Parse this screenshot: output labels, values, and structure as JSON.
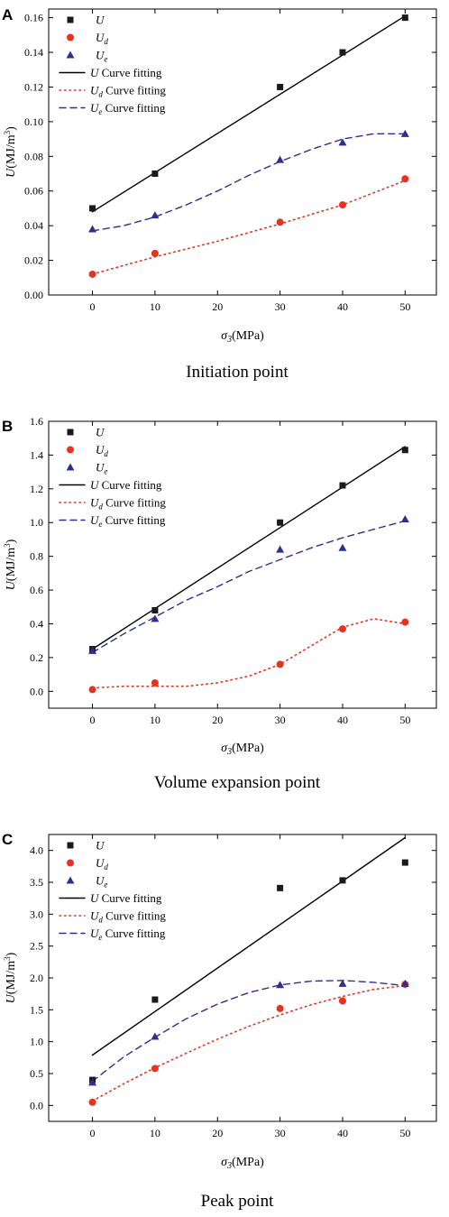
{
  "chart_data": [
    {
      "panel": "A",
      "caption": "Initiation point",
      "type": "scatter",
      "xlabel": "σ3(MPa)",
      "ylabel": "U(MJ/m3)",
      "xlim": [
        -7,
        55
      ],
      "ylim": [
        0,
        0.165
      ],
      "xticks": [
        0,
        10,
        20,
        30,
        40,
        50
      ],
      "yticks": [
        0.0,
        0.02,
        0.04,
        0.06,
        0.08,
        0.1,
        0.12,
        0.14,
        0.16
      ],
      "ytick_decimals": 2,
      "legend_position": "top-left",
      "series": [
        {
          "name": "U",
          "marker": "square",
          "color": "#1a1a1a",
          "x": [
            0,
            10,
            30,
            40,
            50
          ],
          "y": [
            0.05,
            0.07,
            0.12,
            0.14,
            0.16
          ]
        },
        {
          "name": "Ud",
          "marker": "circle",
          "color": "#e8311e",
          "x": [
            0,
            10,
            30,
            40,
            50
          ],
          "y": [
            0.012,
            0.024,
            0.042,
            0.052,
            0.067
          ]
        },
        {
          "name": "Ue",
          "marker": "triangle",
          "color": "#2f2f8f",
          "x": [
            0,
            10,
            30,
            40,
            50
          ],
          "y": [
            0.038,
            0.046,
            0.078,
            0.088,
            0.093
          ]
        }
      ],
      "fits": [
        {
          "name": "U Curve fitting",
          "style": "solid",
          "color": "#000000",
          "x": [
            0,
            50
          ],
          "y": [
            0.048,
            0.161
          ]
        },
        {
          "name": "Ud Curve fitting",
          "style": "dotted",
          "color": "#e8311e",
          "x": [
            0,
            10,
            20,
            30,
            40,
            50
          ],
          "y": [
            0.012,
            0.022,
            0.031,
            0.041,
            0.052,
            0.066
          ]
        },
        {
          "name": "Ue Curve fitting",
          "style": "dashed",
          "color": "#2f2f8f",
          "x": [
            0,
            5,
            10,
            15,
            20,
            25,
            30,
            35,
            40,
            45,
            50
          ],
          "y": [
            0.037,
            0.04,
            0.045,
            0.052,
            0.06,
            0.069,
            0.077,
            0.084,
            0.09,
            0.093,
            0.093
          ]
        }
      ]
    },
    {
      "panel": "B",
      "caption": "Volume expansion point",
      "type": "scatter",
      "xlabel": "σ3(MPa)",
      "ylabel": "U(MJ/m3)",
      "xlim": [
        -7,
        55
      ],
      "ylim": [
        -0.1,
        1.6
      ],
      "xticks": [
        0,
        10,
        20,
        30,
        40,
        50
      ],
      "yticks": [
        0.0,
        0.2,
        0.4,
        0.6,
        0.8,
        1.0,
        1.2,
        1.4,
        1.6
      ],
      "ytick_decimals": 1,
      "legend_position": "top-left",
      "series": [
        {
          "name": "U",
          "marker": "square",
          "color": "#1a1a1a",
          "x": [
            0,
            10,
            30,
            40,
            50
          ],
          "y": [
            0.25,
            0.48,
            1.0,
            1.22,
            1.43
          ]
        },
        {
          "name": "Ud",
          "marker": "circle",
          "color": "#e8311e",
          "x": [
            0,
            10,
            30,
            40,
            50
          ],
          "y": [
            0.01,
            0.05,
            0.16,
            0.37,
            0.41
          ]
        },
        {
          "name": "Ue",
          "marker": "triangle",
          "color": "#2f2f8f",
          "x": [
            0,
            10,
            30,
            40,
            50
          ],
          "y": [
            0.24,
            0.43,
            0.84,
            0.85,
            1.02
          ]
        }
      ],
      "fits": [
        {
          "name": "U Curve fitting",
          "style": "solid",
          "color": "#000000",
          "x": [
            0,
            50
          ],
          "y": [
            0.25,
            1.45
          ]
        },
        {
          "name": "Ud Curve fitting",
          "style": "dotted",
          "color": "#e8311e",
          "x": [
            0,
            5,
            10,
            15,
            20,
            25,
            30,
            35,
            40,
            45,
            50
          ],
          "y": [
            0.02,
            0.03,
            0.03,
            0.03,
            0.05,
            0.09,
            0.16,
            0.27,
            0.38,
            0.43,
            0.4
          ]
        },
        {
          "name": "Ue Curve fitting",
          "style": "dashed",
          "color": "#2f2f8f",
          "x": [
            0,
            5,
            10,
            15,
            20,
            25,
            30,
            35,
            40,
            45,
            50
          ],
          "y": [
            0.23,
            0.34,
            0.44,
            0.54,
            0.62,
            0.71,
            0.78,
            0.85,
            0.91,
            0.96,
            1.01
          ]
        }
      ]
    },
    {
      "panel": "C",
      "caption": "Peak point",
      "type": "scatter",
      "xlabel": "σ3(MPa)",
      "ylabel": "U(MJ/m3)",
      "xlim": [
        -7,
        55
      ],
      "ylim": [
        -0.25,
        4.25
      ],
      "xticks": [
        0,
        10,
        20,
        30,
        40,
        50
      ],
      "yticks": [
        0.0,
        0.5,
        1.0,
        1.5,
        2.0,
        2.5,
        3.0,
        3.5,
        4.0
      ],
      "ytick_decimals": 1,
      "legend_position": "top-left",
      "series": [
        {
          "name": "U",
          "marker": "square",
          "color": "#1a1a1a",
          "x": [
            0,
            10,
            30,
            40,
            50
          ],
          "y": [
            0.4,
            1.66,
            3.41,
            3.53,
            3.81
          ]
        },
        {
          "name": "Ud",
          "marker": "circle",
          "color": "#e8311e",
          "x": [
            0,
            10,
            30,
            40,
            50
          ],
          "y": [
            0.05,
            0.58,
            1.52,
            1.64,
            1.9
          ]
        },
        {
          "name": "Ue",
          "marker": "triangle",
          "color": "#2f2f8f",
          "x": [
            0,
            10,
            30,
            40,
            50
          ],
          "y": [
            0.36,
            1.08,
            1.89,
            1.91,
            1.91
          ]
        }
      ],
      "fits": [
        {
          "name": "U Curve fitting",
          "style": "solid",
          "color": "#000000",
          "x": [
            0,
            50
          ],
          "y": [
            0.79,
            4.2
          ]
        },
        {
          "name": "Ud Curve fitting",
          "style": "dotted",
          "color": "#e8311e",
          "x": [
            0,
            5,
            10,
            15,
            20,
            25,
            30,
            35,
            40,
            45,
            50
          ],
          "y": [
            0.07,
            0.34,
            0.59,
            0.82,
            1.04,
            1.24,
            1.42,
            1.58,
            1.71,
            1.82,
            1.88
          ]
        },
        {
          "name": "Ue Curve fitting",
          "style": "dashed",
          "color": "#2f2f8f",
          "x": [
            0,
            5,
            10,
            15,
            20,
            25,
            30,
            35,
            40,
            45,
            50
          ],
          "y": [
            0.38,
            0.76,
            1.07,
            1.36,
            1.59,
            1.77,
            1.89,
            1.95,
            1.96,
            1.93,
            1.88
          ]
        }
      ]
    }
  ]
}
